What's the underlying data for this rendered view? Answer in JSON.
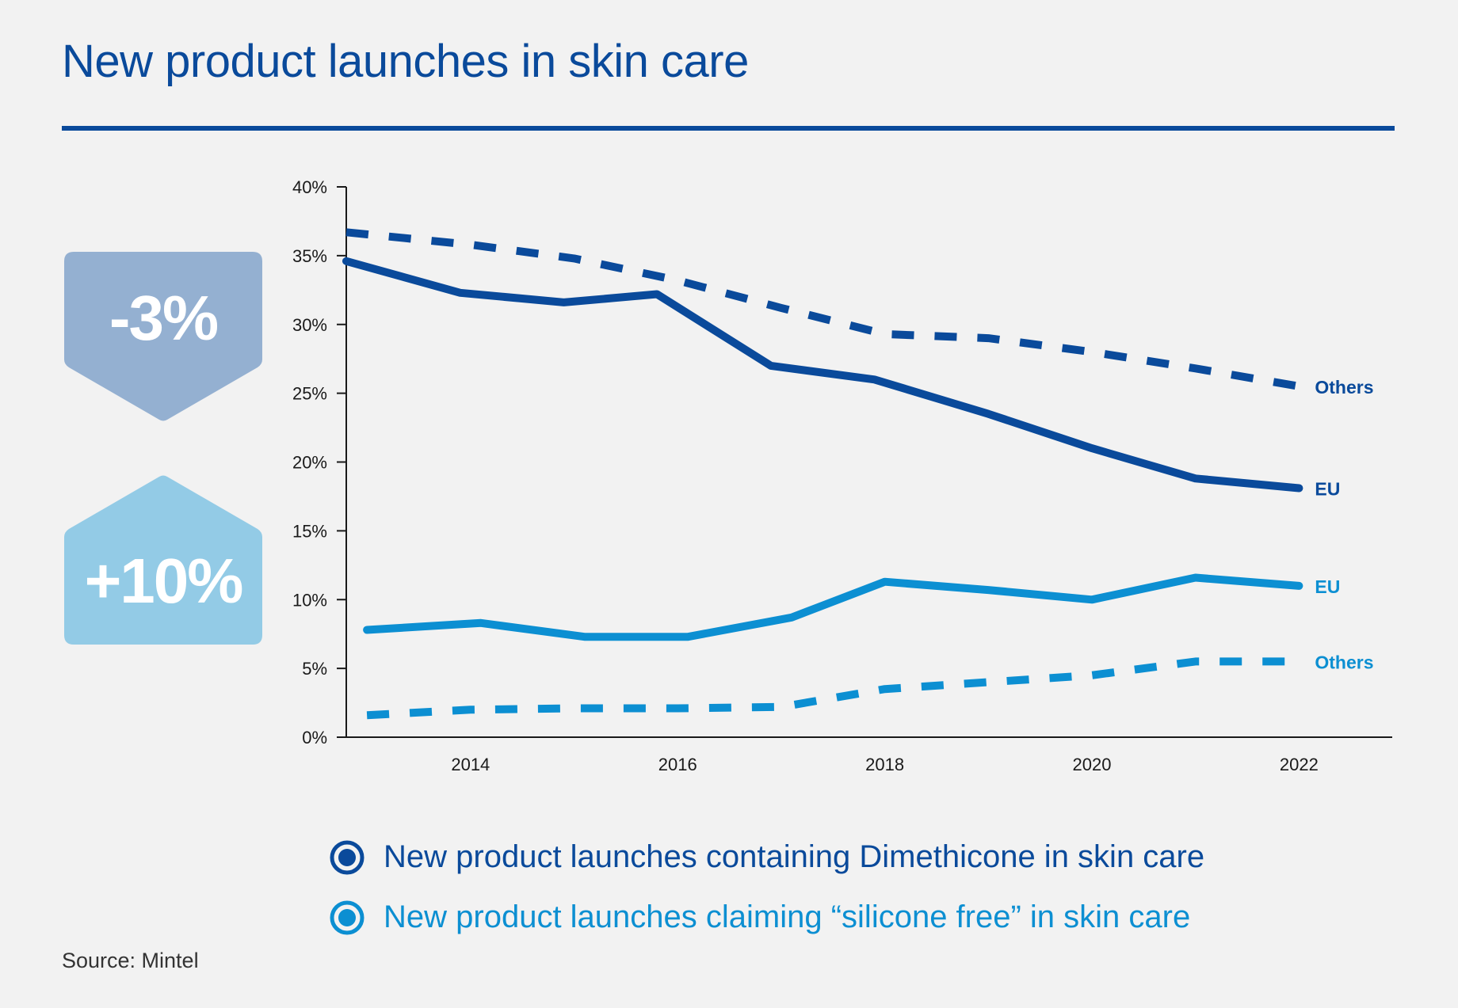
{
  "title": "New product launches in skin care",
  "badges": {
    "down": {
      "text": "-3%",
      "color": "#94b0d1"
    },
    "up": {
      "text": "+10%",
      "color": "#93cbe6"
    }
  },
  "legend": [
    {
      "label": "New product launches containing Dimethicone in skin care",
      "color": "#0a4a9b"
    },
    {
      "label": "New product launches claiming “silicone free” in skin care",
      "color": "#0c8fd2"
    }
  ],
  "source": "Source: Mintel",
  "chart_data": {
    "type": "line",
    "xlim": [
      2012.8,
      2022.9
    ],
    "ylim": [
      0,
      40
    ],
    "x_ticks": [
      "2014",
      "2016",
      "2018",
      "2020",
      "2022"
    ],
    "y_ticks": [
      "0%",
      "5%",
      "10%",
      "15%",
      "20%",
      "25%",
      "30%",
      "35%",
      "40%"
    ],
    "grid": false,
    "series": [
      {
        "name": "Others",
        "group": "Dimethicone",
        "color": "#0a4a9b",
        "dashed": true,
        "x": [
          2012.8,
          2014,
          2015,
          2016,
          2017,
          2018,
          2019,
          2020,
          2021,
          2022
        ],
        "y": [
          36.7,
          35.8,
          34.8,
          33.2,
          31.2,
          29.3,
          29.0,
          28.0,
          26.8,
          25.5
        ]
      },
      {
        "name": "EU",
        "group": "Dimethicone",
        "color": "#0a4a9b",
        "dashed": false,
        "x": [
          2012.8,
          2013.9,
          2014.9,
          2015.8,
          2016.9,
          2017.9,
          2019,
          2020,
          2021,
          2022
        ],
        "y": [
          34.6,
          32.3,
          31.6,
          32.2,
          27.0,
          26.0,
          23.5,
          21.0,
          18.8,
          18.1
        ]
      },
      {
        "name": "EU",
        "group": "Silicone free",
        "color": "#0c8fd2",
        "dashed": false,
        "x": [
          2013,
          2014.1,
          2015.1,
          2016.1,
          2017.1,
          2018,
          2019,
          2020,
          2021,
          2022
        ],
        "y": [
          7.8,
          8.3,
          7.3,
          7.3,
          8.7,
          11.3,
          10.7,
          10.0,
          11.6,
          11.0
        ]
      },
      {
        "name": "Others",
        "group": "Silicone free",
        "color": "#0c8fd2",
        "dashed": true,
        "x": [
          2013,
          2014,
          2015,
          2016,
          2017,
          2018,
          2019,
          2020,
          2021,
          2022
        ],
        "y": [
          1.6,
          2.0,
          2.1,
          2.1,
          2.2,
          3.5,
          4.0,
          4.5,
          5.5,
          5.5
        ]
      }
    ]
  }
}
